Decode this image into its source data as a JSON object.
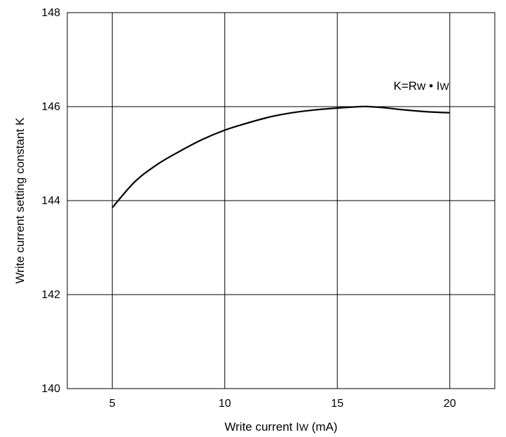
{
  "chart_data": {
    "type": "line",
    "title": "",
    "xlabel": "Write current Iw (mA)",
    "xlabel_parts": {
      "main": "Write current I",
      "sub": "W",
      "tail": " (mA)"
    },
    "ylabel": "Write current setting constant K",
    "xlim": [
      3,
      22
    ],
    "ylim": [
      140,
      148
    ],
    "xticks": [
      5,
      10,
      15,
      20
    ],
    "yticks": [
      140,
      142,
      144,
      146,
      148
    ],
    "grid": true,
    "annotation": {
      "text": "K=Rw • Iw",
      "parts": {
        "prefix": "K=Rw ",
        "bullet": "•",
        "main": " I",
        "sub": "W"
      },
      "anchor": [
        17.5,
        146.45
      ]
    },
    "series": [
      {
        "x": [
          5,
          6,
          7,
          8,
          9,
          10,
          11,
          12,
          13,
          14,
          15,
          16,
          16.4,
          17,
          18,
          19,
          20
        ],
        "y": [
          143.85,
          144.4,
          144.77,
          145.05,
          145.3,
          145.5,
          145.65,
          145.78,
          145.87,
          145.93,
          145.97,
          146.0,
          146.0,
          145.98,
          145.93,
          145.89,
          145.87
        ],
        "color": "#000000"
      }
    ]
  }
}
